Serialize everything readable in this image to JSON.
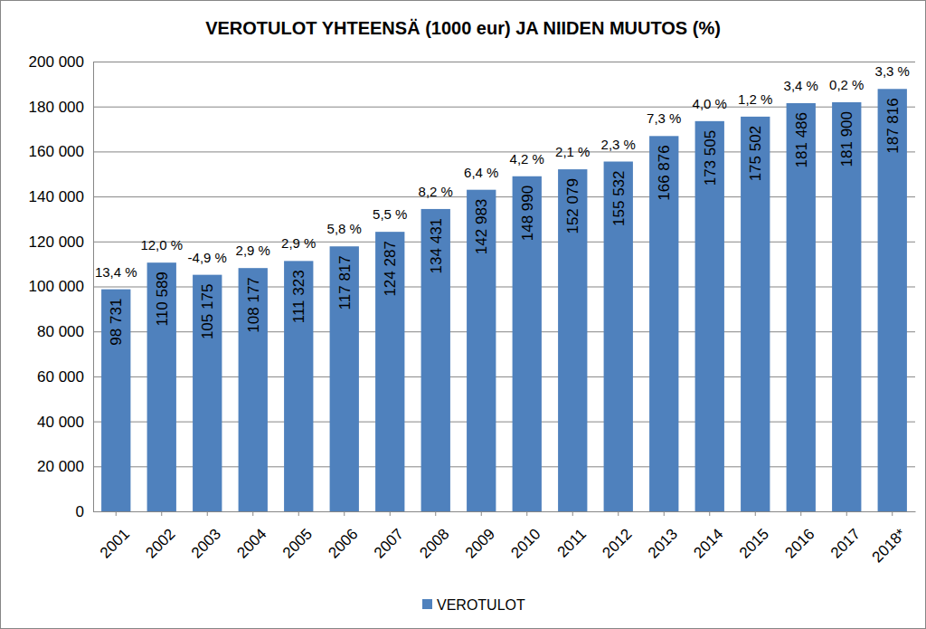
{
  "chart_data": {
    "type": "bar",
    "title": "VEROTULOT YHTEENSÄ (1000 eur) JA NIIDEN MUUTOS (%)",
    "categories": [
      "2001",
      "2002",
      "2003",
      "2004",
      "2005",
      "2006",
      "2007",
      "2008",
      "2009",
      "2010",
      "2011",
      "2012",
      "2013",
      "2014",
      "2015",
      "2016",
      "2017",
      "2018*"
    ],
    "series": [
      {
        "name": "VEROTULOT",
        "color": "#4f81bd",
        "values": [
          98731,
          110589,
          105175,
          108177,
          111323,
          117817,
          124287,
          134431,
          142983,
          148990,
          152079,
          155532,
          166876,
          173505,
          175502,
          181486,
          181900,
          187816
        ],
        "value_labels": [
          "98 731",
          "110 589",
          "105 175",
          "108 177",
          "111 323",
          "117 817",
          "124 287",
          "134 431",
          "142 983",
          "148 990",
          "152 079",
          "155 532",
          "166 876",
          "173 505",
          "175 502",
          "181 486",
          "181 900",
          "187 816"
        ],
        "changes": [
          13.4,
          12.0,
          -4.9,
          2.9,
          2.9,
          5.8,
          5.5,
          8.2,
          6.4,
          4.2,
          2.1,
          2.3,
          7.3,
          4.0,
          1.2,
          3.4,
          0.2,
          3.3
        ],
        "change_labels": [
          "13,4 %",
          "12,0 %",
          "-4,9 %",
          "2,9 %",
          "2,9 %",
          "5,8 %",
          "5,5 %",
          "8,2 %",
          "6,4 %",
          "4,2 %",
          "2,1 %",
          "2,3 %",
          "7,3 %",
          "4,0 %",
          "1,2 %",
          "3,4 %",
          "0,2 %",
          "3,3 %"
        ]
      }
    ],
    "ylim": [
      0,
      200000
    ],
    "yticks": [
      0,
      {
        "value": 20000,
        "label": "20 000"
      },
      {
        "value": 40000,
        "label": "40 000"
      },
      {
        "value": 60000,
        "label": "60 000"
      },
      {
        "value": 80000,
        "label": "80 000"
      },
      {
        "value": 100000,
        "label": "100 000"
      },
      {
        "value": 120000,
        "label": "120 000"
      },
      {
        "value": 140000,
        "label": "140 000"
      },
      {
        "value": 160000,
        "label": "160 000"
      },
      {
        "value": 180000,
        "label": "180 000"
      },
      {
        "value": 200000,
        "label": "200 000"
      }
    ],
    "grid": true,
    "legend": "bottom",
    "data_labels": true
  }
}
